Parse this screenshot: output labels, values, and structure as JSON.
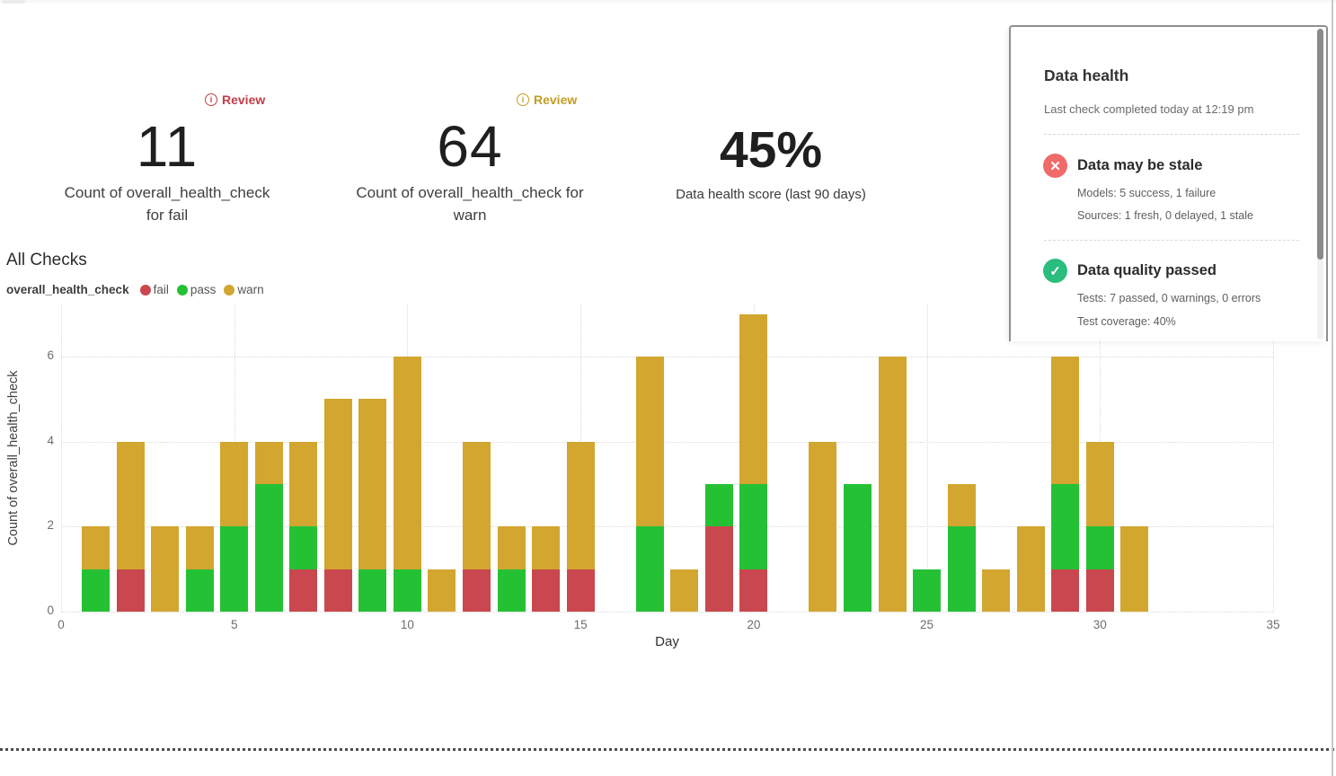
{
  "metrics": [
    {
      "review_label": "Review",
      "review_color": "#c43d4b",
      "value": "11",
      "label_line1": "Count of overall_health_check",
      "label_line2": "for fail"
    },
    {
      "review_label": "Review",
      "review_color": "#c49d25",
      "value": "64",
      "label_line1": "Count of overall_health_check for",
      "label_line2": "warn"
    },
    {
      "value": "45%",
      "label": "Data health score (last 90 days)"
    }
  ],
  "panel": {
    "title": "Data health",
    "subtitle": "Last check completed today at 12:19 pm",
    "items": [
      {
        "icon": "x-circle",
        "icon_color": "#f06a6a",
        "heading": "Data may be stale",
        "lines": [
          "Models: 5 success, 1 failure",
          "Sources: 1 fresh, 0 delayed, 1 stale"
        ]
      },
      {
        "icon": "check-circle",
        "icon_color": "#2abd7d",
        "heading": "Data quality passed",
        "lines": [
          "Tests: 7 passed, 0 warnings, 0 errors",
          "Test coverage: 40%"
        ]
      }
    ]
  },
  "chart_header": {
    "title": "All Checks",
    "legend_title": "overall_health_check",
    "legend": [
      {
        "label": "fail",
        "color": "#c9474e"
      },
      {
        "label": "pass",
        "color": "#24c135"
      },
      {
        "label": "warn",
        "color": "#d2a62f"
      }
    ]
  },
  "chart_data": {
    "type": "bar",
    "stacked": true,
    "title": "All Checks",
    "xlabel": "Day",
    "ylabel": "Count of overall_health_check",
    "x": [
      1,
      2,
      3,
      4,
      5,
      6,
      7,
      8,
      9,
      10,
      11,
      12,
      13,
      14,
      15,
      16,
      17,
      18,
      19,
      20,
      21,
      22,
      23,
      24,
      25,
      26,
      27,
      28,
      29,
      30,
      31
    ],
    "series": [
      {
        "name": "fail",
        "color": "#c9474e",
        "values": [
          0,
          1,
          0,
          0,
          0,
          0,
          1,
          1,
          0,
          0,
          0,
          1,
          0,
          1,
          1,
          0,
          0,
          0,
          2,
          1,
          0,
          0,
          0,
          0,
          0,
          0,
          0,
          0,
          1,
          1,
          0
        ]
      },
      {
        "name": "pass",
        "color": "#24c135",
        "values": [
          1,
          0,
          0,
          1,
          2,
          3,
          1,
          0,
          1,
          1,
          0,
          0,
          1,
          0,
          0,
          0,
          2,
          0,
          1,
          2,
          0,
          0,
          3,
          0,
          1,
          2,
          0,
          0,
          2,
          1,
          0
        ]
      },
      {
        "name": "warn",
        "color": "#d2a62f",
        "values": [
          1,
          3,
          2,
          1,
          2,
          1,
          2,
          4,
          4,
          5,
          1,
          3,
          1,
          1,
          3,
          0,
          4,
          1,
          0,
          4,
          0,
          4,
          0,
          6,
          0,
          1,
          1,
          2,
          3,
          2,
          2
        ]
      }
    ],
    "x_ticks": [
      0,
      5,
      10,
      15,
      20,
      25,
      30,
      35
    ],
    "y_ticks": [
      0,
      2,
      4,
      6
    ],
    "xlim": [
      0,
      35
    ],
    "ylim": [
      0,
      7.2
    ],
    "grid": "dotted",
    "legend_position": "top-left"
  }
}
